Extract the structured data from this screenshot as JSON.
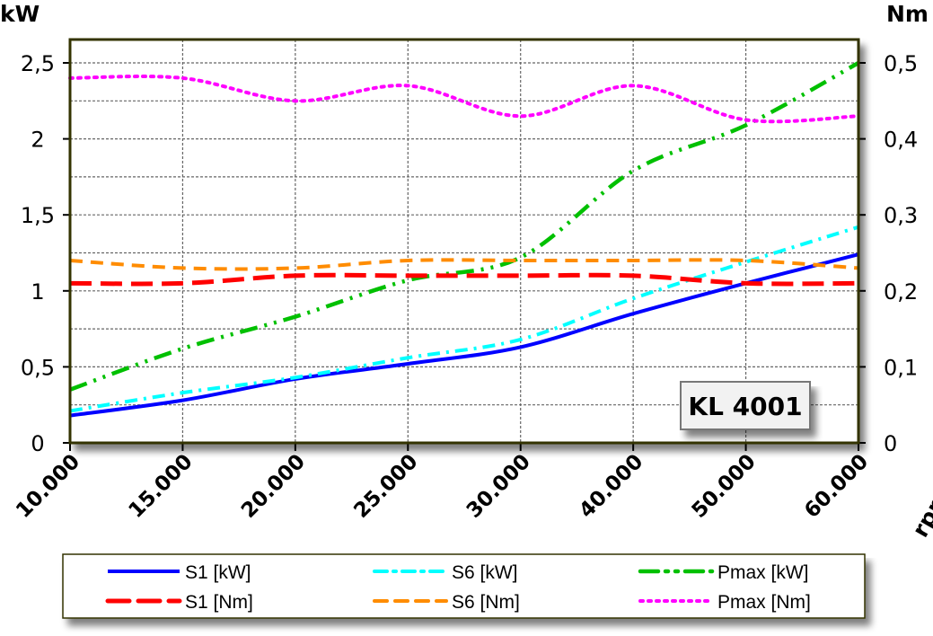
{
  "chart_data": {
    "type": "line",
    "badge": "KL 4001",
    "categories": [
      "10.000",
      "15.000",
      "20.000",
      "25.000",
      "30.000",
      "40.000",
      "50.000",
      "60.000"
    ],
    "xlabel": "rpm",
    "ylabel_left": "kW",
    "ylabel_right": "Nm",
    "ylim_left": [
      0,
      2.5
    ],
    "ylim_right": [
      0,
      0.5
    ],
    "yticks_left": [
      "0",
      "0,5",
      "1",
      "1,5",
      "2",
      "2,5"
    ],
    "yticks_right": [
      "0",
      "0,1",
      "0,2",
      "0,3",
      "0,4",
      "0,5"
    ],
    "grid": true,
    "legend_position": "bottom",
    "series": [
      {
        "name": "S1 [kW]",
        "axis": "left",
        "color": "#0000ff",
        "style": "solid",
        "values": [
          0.18,
          0.28,
          0.42,
          0.52,
          0.63,
          0.85,
          1.05,
          1.24
        ]
      },
      {
        "name": "S6 [kW]",
        "axis": "left",
        "color": "#00ffff",
        "style": "dashdot",
        "values": [
          0.21,
          0.33,
          0.43,
          0.56,
          0.68,
          0.95,
          1.19,
          1.42
        ]
      },
      {
        "name": "Pmax [kW]",
        "axis": "left",
        "color": "#00c000",
        "style": "dashdotdot",
        "values": [
          0.35,
          0.62,
          0.83,
          1.07,
          1.22,
          1.79,
          2.09,
          2.5
        ]
      },
      {
        "name": "S1 [Nm]",
        "axis": "right",
        "color": "#ff0000",
        "style": "longdash",
        "values": [
          0.21,
          0.21,
          0.22,
          0.22,
          0.22,
          0.22,
          0.21,
          0.21
        ]
      },
      {
        "name": "S6 [Nm]",
        "axis": "right",
        "color": "#ff8c00",
        "style": "dash",
        "values": [
          0.24,
          0.23,
          0.23,
          0.24,
          0.24,
          0.24,
          0.24,
          0.23
        ]
      },
      {
        "name": "Pmax [Nm]",
        "axis": "right",
        "color": "#ff00ff",
        "style": "dot",
        "values": [
          0.48,
          0.48,
          0.45,
          0.47,
          0.43,
          0.47,
          0.425,
          0.43
        ]
      }
    ]
  }
}
